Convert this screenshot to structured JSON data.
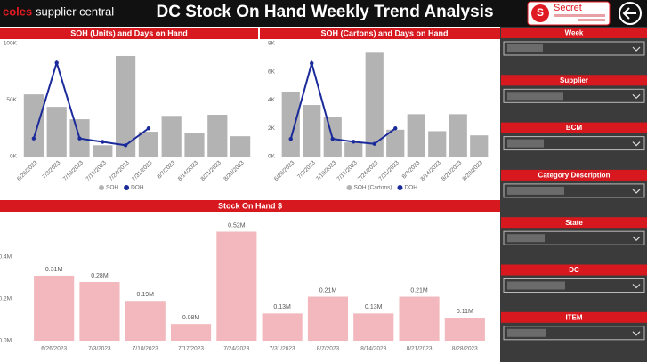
{
  "header": {
    "logo_brand": "coles",
    "logo_text": "supplier central",
    "title": "DC Stock On Hand Weekly Trend Analysis",
    "badge": "Secret"
  },
  "filters": [
    "Week",
    "Supplier",
    "BCM",
    "Category Description",
    "State",
    "DC",
    "ITEM"
  ],
  "chart_data": [
    {
      "type": "combo",
      "title": "SOH (Units) and Days on Hand",
      "categories": [
        "6/26/2023",
        "7/3/2023",
        "7/10/2023",
        "7/17/2023",
        "7/24/2023",
        "7/31/2023",
        "8/7/2023",
        "8/14/2023",
        "8/21/2023",
        "8/28/2023"
      ],
      "series": [
        {
          "name": "SOH",
          "type": "bar",
          "color": "#b3b3b3",
          "values": [
            55000,
            44000,
            33000,
            10000,
            89000,
            22000,
            36000,
            21000,
            37000,
            18000
          ]
        },
        {
          "name": "DOH",
          "type": "line",
          "color": "#1a2a9a",
          "values": [
            16000,
            83000,
            16000,
            13000,
            10000,
            25000,
            null,
            null,
            null,
            null
          ]
        }
      ],
      "ylim": [
        0,
        100000
      ],
      "yticks": [
        {
          "value": 0,
          "label": "0K"
        },
        {
          "value": 50000,
          "label": "50K"
        },
        {
          "value": 100000,
          "label": "100K"
        }
      ],
      "grid": false,
      "legend": "bottom"
    },
    {
      "type": "combo",
      "title": "SOH (Cartons) and Days on Hand",
      "categories": [
        "6/26/2023",
        "7/3/2023",
        "7/10/2023",
        "7/17/2023",
        "7/24/2023",
        "7/31/2023",
        "8/7/2023",
        "8/14/2023",
        "8/21/2023",
        "8/28/2023"
      ],
      "series": [
        {
          "name": "SOH (Cartons)",
          "type": "bar",
          "color": "#b3b3b3",
          "values": [
            4600,
            3650,
            2800,
            1000,
            7350,
            1900,
            3000,
            1800,
            3000,
            1500
          ]
        },
        {
          "name": "DOH",
          "type": "line",
          "color": "#1a2a9a",
          "values": [
            1250,
            6600,
            1250,
            1050,
            900,
            2000,
            null,
            null,
            null,
            null
          ]
        }
      ],
      "ylim": [
        0,
        8000
      ],
      "yticks": [
        {
          "value": 0,
          "label": "0K"
        },
        {
          "value": 2000,
          "label": "2K"
        },
        {
          "value": 4000,
          "label": "4K"
        },
        {
          "value": 6000,
          "label": "6K"
        },
        {
          "value": 8000,
          "label": "8K"
        }
      ],
      "grid": false,
      "legend": "bottom"
    },
    {
      "type": "bar",
      "title": "Stock On Hand $",
      "categories": [
        "6/26/2023",
        "7/3/2023",
        "7/10/2023",
        "7/17/2023",
        "7/24/2023",
        "7/31/2023",
        "8/7/2023",
        "8/14/2023",
        "8/21/2023",
        "8/28/2023"
      ],
      "values": [
        0.31,
        0.28,
        0.19,
        0.08,
        0.52,
        0.13,
        0.21,
        0.13,
        0.21,
        0.11
      ],
      "value_labels": [
        "0.31M",
        "0.28M",
        "0.19M",
        "0.08M",
        "0.52M",
        "0.13M",
        "0.21M",
        "0.13M",
        "0.21M",
        "0.11M"
      ],
      "color": "#f2b8bd",
      "ylim": [
        0,
        0.59
      ],
      "yticks": [
        {
          "value": 0,
          "label": "0.0M"
        },
        {
          "value": 0.2,
          "label": "0.2M"
        },
        {
          "value": 0.4,
          "label": "0.4M"
        }
      ],
      "grid": false
    }
  ]
}
